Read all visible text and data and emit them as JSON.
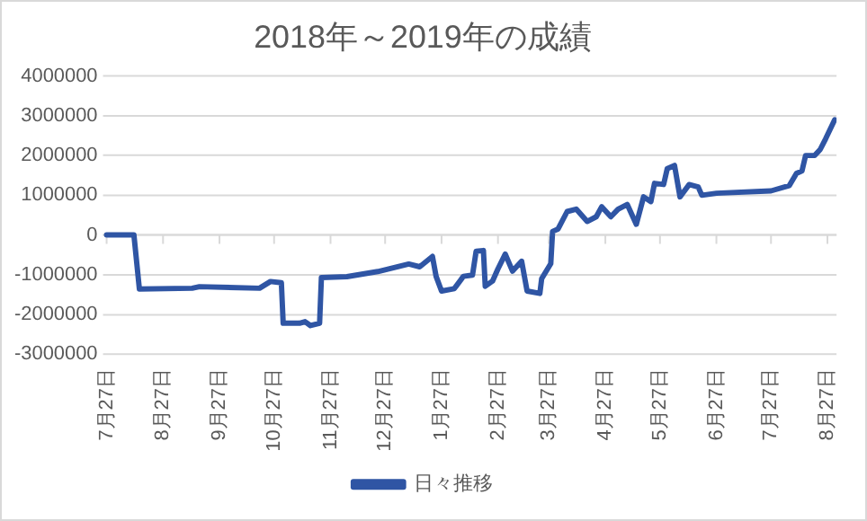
{
  "chart_data": {
    "type": "line",
    "title": "2018年～2019年の成績",
    "legend": "bottom",
    "grid": "y",
    "marker": "none",
    "line_style": "solid",
    "xlim": [
      "2018-07-25",
      "2019-09-01"
    ],
    "xticks": [
      {
        "value": "2018-07-27",
        "label": "7月27日"
      },
      {
        "value": "2018-08-27",
        "label": "8月27日"
      },
      {
        "value": "2018-09-27",
        "label": "9月27日"
      },
      {
        "value": "2018-10-27",
        "label": "10月27日"
      },
      {
        "value": "2018-11-27",
        "label": "11月27日"
      },
      {
        "value": "2018-12-27",
        "label": "12月27日"
      },
      {
        "value": "2019-01-27",
        "label": "1月27日"
      },
      {
        "value": "2019-02-27",
        "label": "2月27日"
      },
      {
        "value": "2019-03-27",
        "label": "3月27日"
      },
      {
        "value": "2019-04-27",
        "label": "4月27日"
      },
      {
        "value": "2019-05-27",
        "label": "5月27日"
      },
      {
        "value": "2019-06-27",
        "label": "6月27日"
      },
      {
        "value": "2019-07-27",
        "label": "7月27日"
      },
      {
        "value": "2019-08-27",
        "label": "8月27日"
      }
    ],
    "ylim": [
      -3000000,
      4000000
    ],
    "yticks": [
      -3000000,
      -2000000,
      -1000000,
      0,
      1000000,
      2000000,
      3000000,
      4000000
    ],
    "x": [
      "2018-07-27",
      "2018-08-11",
      "2018-08-14",
      "2018-09-12",
      "2018-09-16",
      "2018-10-19",
      "2018-10-25",
      "2018-10-31",
      "2018-11-01",
      "2018-11-10",
      "2018-11-13",
      "2018-11-16",
      "2018-11-21",
      "2018-11-22",
      "2018-12-06",
      "2018-12-23",
      "2019-01-09",
      "2019-01-15",
      "2019-01-22",
      "2019-01-24",
      "2019-01-27",
      "2019-02-03",
      "2019-02-08",
      "2019-02-13",
      "2019-02-15",
      "2019-02-19",
      "2019-02-20",
      "2019-02-24",
      "2019-02-27",
      "2019-03-03",
      "2019-03-07",
      "2019-03-12",
      "2019-03-15",
      "2019-03-22",
      "2019-03-23",
      "2019-03-28",
      "2019-03-29",
      "2019-04-01",
      "2019-04-06",
      "2019-04-11",
      "2019-04-17",
      "2019-04-22",
      "2019-04-25",
      "2019-04-30",
      "2019-05-04",
      "2019-05-09",
      "2019-05-14",
      "2019-05-18",
      "2019-05-22",
      "2019-05-24",
      "2019-05-29",
      "2019-05-31",
      "2019-06-04",
      "2019-06-07",
      "2019-06-12",
      "2019-06-17",
      "2019-06-19",
      "2019-06-27",
      "2019-07-27",
      "2019-08-06",
      "2019-08-10",
      "2019-08-13",
      "2019-08-15",
      "2019-08-20",
      "2019-08-23",
      "2019-08-26",
      "2019-08-31"
    ],
    "series": [
      {
        "name": "日々推移",
        "color": "#2f55a4",
        "values": [
          0,
          0,
          -1360000,
          -1340000,
          -1300000,
          -1340000,
          -1170000,
          -1200000,
          -2220000,
          -2220000,
          -2180000,
          -2280000,
          -2220000,
          -1070000,
          -1050000,
          -920000,
          -730000,
          -800000,
          -540000,
          -1040000,
          -1410000,
          -1350000,
          -1040000,
          -1010000,
          -410000,
          -390000,
          -1290000,
          -1160000,
          -850000,
          -480000,
          -910000,
          -660000,
          -1410000,
          -1470000,
          -1100000,
          -720000,
          90000,
          150000,
          590000,
          650000,
          340000,
          460000,
          710000,
          460000,
          650000,
          770000,
          270000,
          960000,
          840000,
          1300000,
          1270000,
          1670000,
          1750000,
          960000,
          1270000,
          1210000,
          1000000,
          1050000,
          1110000,
          1240000,
          1550000,
          1610000,
          2000000,
          2000000,
          2150000,
          2420000,
          2900000
        ]
      }
    ]
  }
}
